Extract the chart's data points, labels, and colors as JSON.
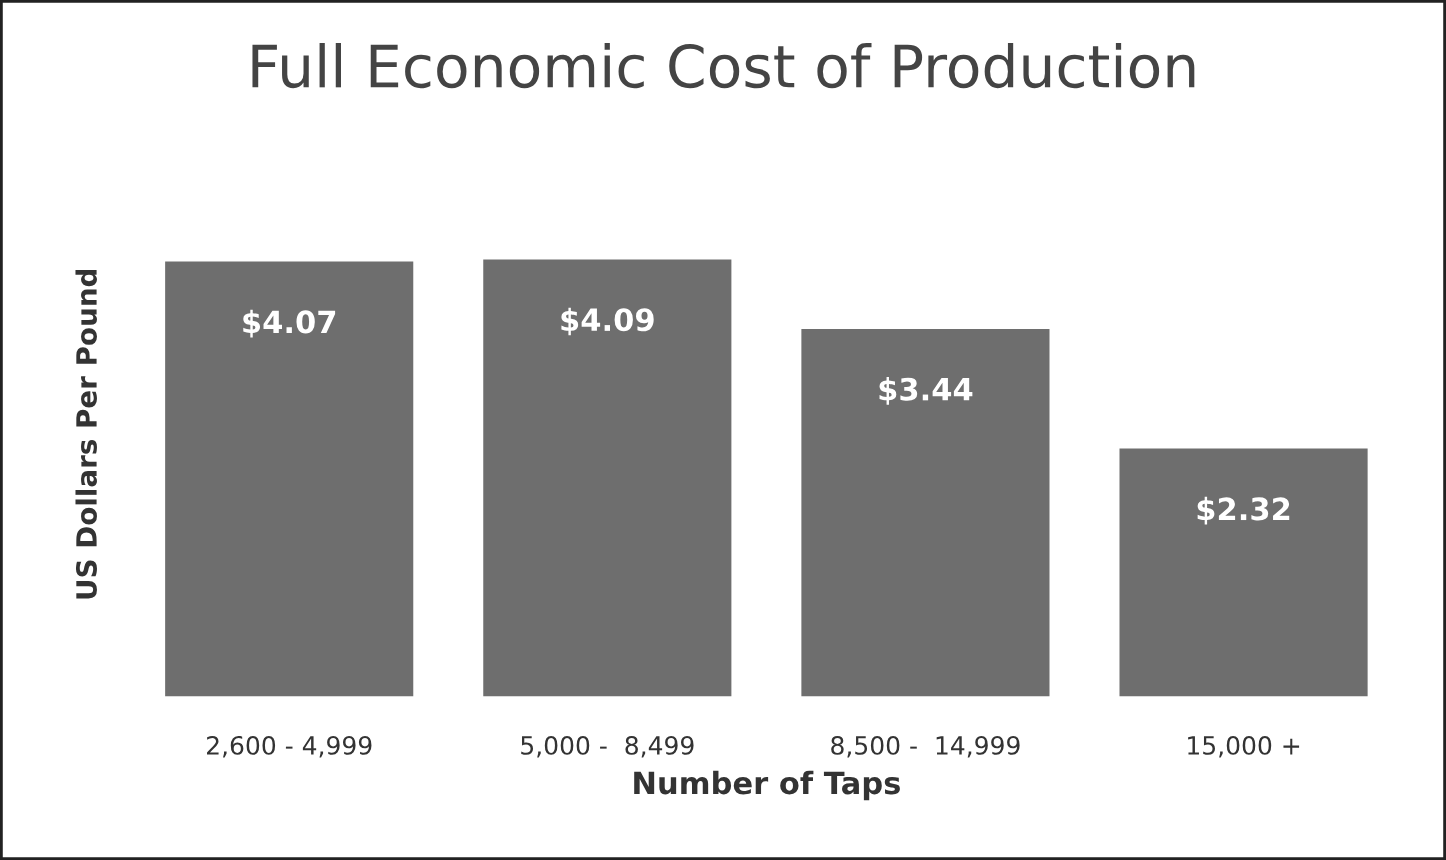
{
  "chart_data": {
    "type": "bar",
    "title": "Full Economic Cost of Production",
    "xlabel": "Number of Taps",
    "ylabel": "US Dollars Per Pound",
    "categories": [
      "2,600 - 4,999",
      "5,000 -  8,499",
      "8,500 -  14,999",
      "15,000 +"
    ],
    "values": [
      4.07,
      4.09,
      3.44,
      2.32
    ],
    "value_labels": [
      "$4.07",
      "$4.09",
      "$3.44",
      "$2.32"
    ],
    "color": "#6e6e6e",
    "tick_labels": "x",
    "grid": false,
    "legend": false
  }
}
